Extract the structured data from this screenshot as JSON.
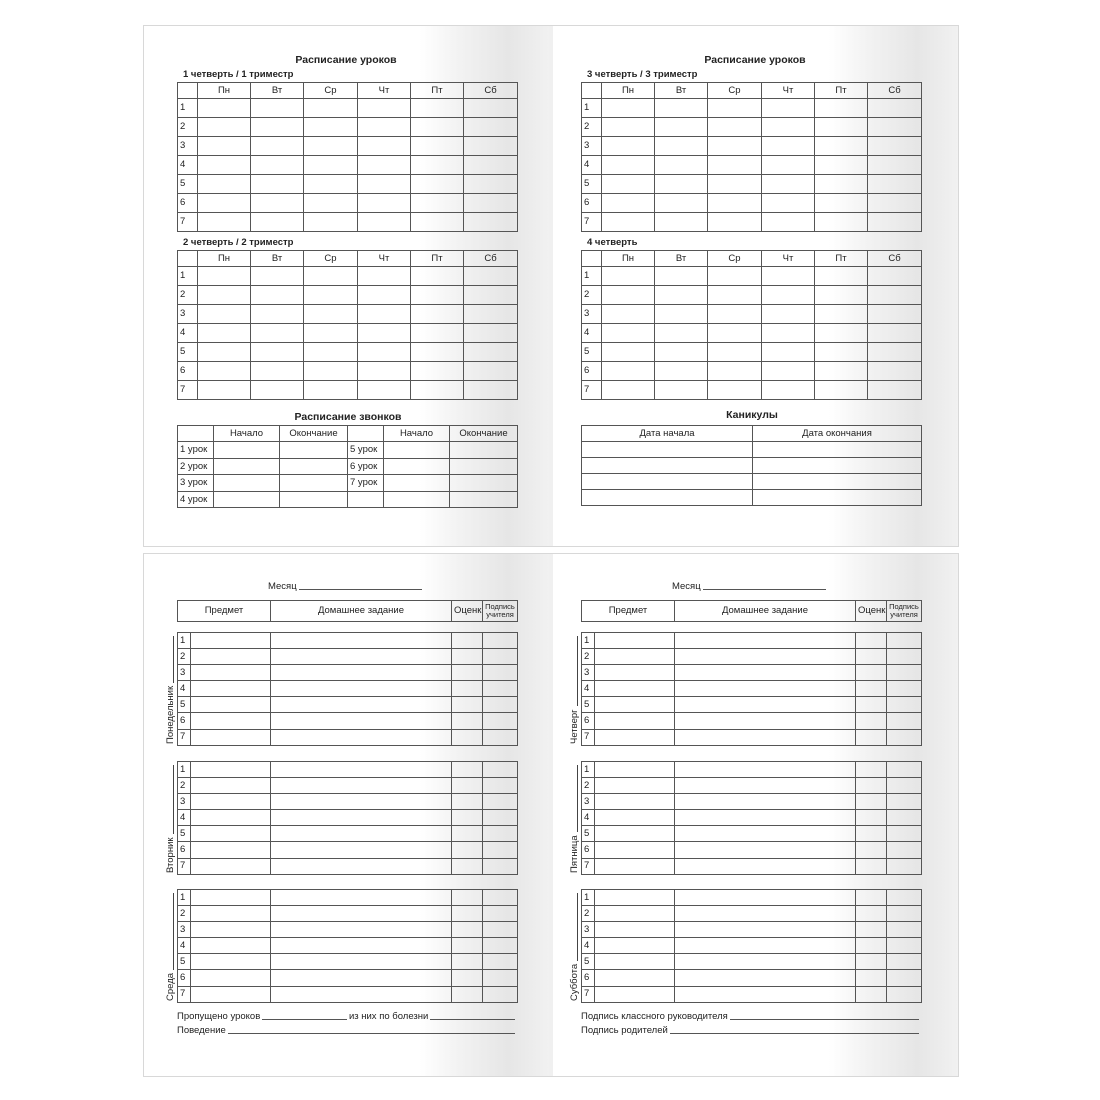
{
  "top_left": {
    "title": "Расписание уроков",
    "sections": [
      {
        "label": "1 четверть   /   1 триместр"
      },
      {
        "label": "2 четверть   /   2 триместр"
      }
    ],
    "bells": {
      "title": "Расписание звонков",
      "headers": [
        "",
        "Начало",
        "Окончание",
        "",
        "Начало",
        "Окончание"
      ],
      "lessons_left": [
        "1 урок",
        "2 урок",
        "3 урок",
        "4 урок"
      ],
      "lessons_right": [
        "5 урок",
        "6 урок",
        "7 урок",
        ""
      ]
    }
  },
  "top_right": {
    "title": "Расписание уроков",
    "sections": [
      {
        "label": "3 четверть   /   3 триместр"
      },
      {
        "label": "4 четверть"
      }
    ],
    "vacations": {
      "title": "Каникулы",
      "headers": [
        "Дата начала",
        "Дата окончания"
      ]
    }
  },
  "schedule": {
    "days": [
      "Пн",
      "Вт",
      "Ср",
      "Чт",
      "Пт",
      "Сб"
    ],
    "lesson_numbers": [
      "1",
      "2",
      "3",
      "4",
      "5",
      "6",
      "7"
    ]
  },
  "homework": {
    "month_label": "Месяц",
    "headers": [
      "Предмет",
      "Домашнее задание",
      "Оценка",
      "Подпись учителя"
    ]
  },
  "bottom_left": {
    "days": [
      "Понедельник",
      "Вторник",
      "Среда"
    ],
    "footer": {
      "missed": "Пропущено уроков",
      "sick": "из них по болезни",
      "behavior": "Поведение"
    }
  },
  "bottom_right": {
    "days": [
      "Четверг",
      "Пятница",
      "Суббота"
    ],
    "footer": {
      "teacher_sign": "Подпись классного руководителя",
      "parents_sign": "Подпись родителей"
    }
  }
}
